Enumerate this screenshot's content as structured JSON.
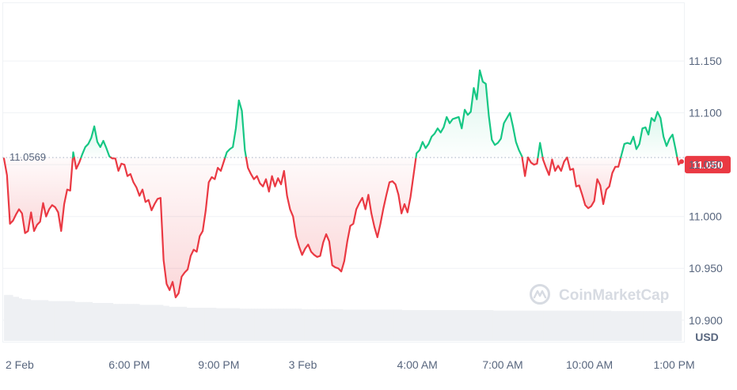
{
  "currency_unit": "USD",
  "watermark": {
    "text": "CoinMarketCap",
    "icon": "coinmarketcap-logo-icon"
  },
  "reference_price": {
    "label": "11.0569",
    "value": 11.0569
  },
  "current_price": {
    "label": "11.050",
    "value": 11.05
  },
  "colors": {
    "up": "#16c784",
    "down": "#ea3943",
    "grid": "#eff2f5",
    "reference": "#a6b0c3",
    "volume": "#eef0f3",
    "text": "#58667e"
  },
  "chart_data": {
    "type": "line",
    "title": "",
    "xlabel": "",
    "ylabel": "USD",
    "grid": true,
    "legend": "none",
    "ylim": [
      10.88,
      11.205
    ],
    "x_tick_labels": [
      "2 Feb",
      "6:00 PM",
      "9:00 PM",
      "3 Feb",
      "4:00 AM",
      "7:00 AM",
      "10:00 AM",
      "1:00 PM"
    ],
    "y_tick_labels": [
      "11.150",
      "11.100",
      "11.050",
      "11.000",
      "10.950",
      "10.900"
    ],
    "y_ticks": [
      11.15,
      11.1,
      11.05,
      11.0,
      10.95,
      10.9
    ],
    "baseline": 11.0569,
    "series": [
      {
        "values": [
          11.056,
          11.04,
          10.993,
          10.996,
          11.002,
          11.007,
          11.003,
          10.984,
          10.986,
          11.004,
          10.986,
          10.992,
          10.995,
          11.013,
          11.0,
          11.007,
          11.011,
          11.009,
          11.004,
          10.986,
          11.012,
          11.026,
          11.025,
          11.062,
          11.046,
          11.052,
          11.06,
          11.067,
          11.07,
          11.076,
          11.087,
          11.072,
          11.067,
          11.073,
          11.066,
          11.058,
          11.056,
          11.056,
          11.044,
          11.051,
          11.05,
          11.039,
          11.041,
          11.033,
          11.028,
          11.02,
          11.026,
          11.014,
          11.016,
          11.006,
          11.012,
          11.017,
          11.018,
          10.958,
          10.935,
          10.929,
          10.937,
          10.922,
          10.926,
          10.942,
          10.946,
          10.949,
          10.962,
          10.968,
          10.966,
          10.981,
          10.986,
          11.006,
          11.033,
          11.038,
          11.036,
          11.047,
          11.044,
          11.053,
          11.062,
          11.065,
          11.067,
          11.085,
          11.112,
          11.102,
          11.064,
          11.047,
          11.041,
          11.036,
          11.039,
          11.032,
          11.029,
          11.036,
          11.024,
          11.039,
          11.029,
          11.037,
          11.031,
          11.044,
          11.02,
          11.007,
          11.0,
          10.981,
          10.971,
          10.963,
          10.969,
          10.973,
          10.966,
          10.963,
          10.961,
          10.962,
          10.975,
          10.983,
          10.976,
          10.953,
          10.951,
          10.95,
          10.947,
          10.957,
          10.976,
          10.991,
          10.993,
          11.007,
          11.013,
          11.018,
          11.007,
          11.021,
          11.003,
          10.99,
          10.98,
          10.993,
          11.008,
          11.021,
          11.033,
          11.034,
          11.031,
          11.021,
          11.003,
          11.012,
          11.004,
          11.019,
          11.04,
          11.061,
          11.064,
          11.072,
          11.066,
          11.07,
          11.077,
          11.08,
          11.085,
          11.081,
          11.086,
          11.096,
          11.09,
          11.094,
          11.095,
          11.096,
          11.085,
          11.103,
          11.098,
          11.101,
          11.124,
          11.113,
          11.141,
          11.13,
          11.128,
          11.097,
          11.074,
          11.069,
          11.071,
          11.075,
          11.09,
          11.095,
          11.1,
          11.087,
          11.072,
          11.064,
          11.058,
          11.039,
          11.057,
          11.052,
          11.05,
          11.051,
          11.071,
          11.055,
          11.047,
          11.04,
          11.055,
          11.044,
          11.049,
          11.044,
          11.053,
          11.057,
          11.045,
          11.046,
          11.029,
          11.03,
          11.021,
          11.011,
          11.008,
          11.01,
          11.015,
          11.036,
          11.03,
          11.012,
          11.026,
          11.029,
          11.042,
          11.048,
          11.048,
          11.059,
          11.07,
          11.071,
          11.07,
          11.077,
          11.065,
          11.07,
          11.085,
          11.086,
          11.079,
          11.095,
          11.092,
          11.101,
          11.095,
          11.077,
          11.068,
          11.075,
          11.079,
          11.065,
          11.05,
          11.053
        ]
      }
    ],
    "volume_bars": {
      "relative_heights": [
        0.97,
        0.97,
        0.97,
        0.93,
        0.93,
        0.9,
        0.88,
        0.88,
        0.88,
        0.86,
        0.86,
        0.86,
        0.86,
        0.86,
        0.86,
        0.84,
        0.84,
        0.84,
        0.84,
        0.84,
        0.84,
        0.84,
        0.84,
        0.84,
        0.82,
        0.82,
        0.82,
        0.82,
        0.82,
        0.82,
        0.8,
        0.8,
        0.8,
        0.8,
        0.8,
        0.8,
        0.8,
        0.78,
        0.78,
        0.78,
        0.78,
        0.78,
        0.78,
        0.78,
        0.78,
        0.78,
        0.76,
        0.76,
        0.76,
        0.76,
        0.76,
        0.76,
        0.76,
        0.76,
        0.74,
        0.74,
        0.72,
        0.72,
        0.72,
        0.72,
        0.72,
        0.72,
        0.7,
        0.7,
        0.7,
        0.7,
        0.7,
        0.7,
        0.7,
        0.7,
        0.7,
        0.7,
        0.69,
        0.69,
        0.69,
        0.69,
        0.69,
        0.69,
        0.69,
        0.69,
        0.68,
        0.68,
        0.68,
        0.68,
        0.68,
        0.68,
        0.68,
        0.68,
        0.68,
        0.68,
        0.68,
        0.68,
        0.68,
        0.68,
        0.68,
        0.68,
        0.68,
        0.68,
        0.68,
        0.68,
        0.68,
        0.67,
        0.67,
        0.67,
        0.67,
        0.67,
        0.67,
        0.67,
        0.67,
        0.67,
        0.67,
        0.67,
        0.67,
        0.67,
        0.67,
        0.66,
        0.66,
        0.66,
        0.66,
        0.66,
        0.66,
        0.66,
        0.66,
        0.66,
        0.66,
        0.66,
        0.66,
        0.66,
        0.66,
        0.66,
        0.66,
        0.66,
        0.66,
        0.66,
        0.66,
        0.65,
        0.65,
        0.65,
        0.65,
        0.65,
        0.65,
        0.65,
        0.65,
        0.65,
        0.65,
        0.65,
        0.65,
        0.65,
        0.65,
        0.65,
        0.65,
        0.65,
        0.65,
        0.65,
        0.65,
        0.65,
        0.65,
        0.65,
        0.65,
        0.65,
        0.65,
        0.65,
        0.65,
        0.65,
        0.65,
        0.65,
        0.64,
        0.64,
        0.64,
        0.64,
        0.64,
        0.64,
        0.64,
        0.64,
        0.64,
        0.64,
        0.64,
        0.64,
        0.64,
        0.64,
        0.64,
        0.64,
        0.64,
        0.64,
        0.64,
        0.64,
        0.64,
        0.64,
        0.64,
        0.64,
        0.64,
        0.64,
        0.64,
        0.64,
        0.64,
        0.64,
        0.64,
        0.64,
        0.64,
        0.64,
        0.64,
        0.64,
        0.64,
        0.64,
        0.64,
        0.64,
        0.63,
        0.63,
        0.63,
        0.63,
        0.63,
        0.63,
        0.63,
        0.63,
        0.63,
        0.63,
        0.63,
        0.63,
        0.63,
        0.63,
        0.63,
        0.63,
        0.63,
        0.63,
        0.63,
        0.63,
        0.63,
        0.63,
        0.63,
        0.63
      ]
    }
  }
}
